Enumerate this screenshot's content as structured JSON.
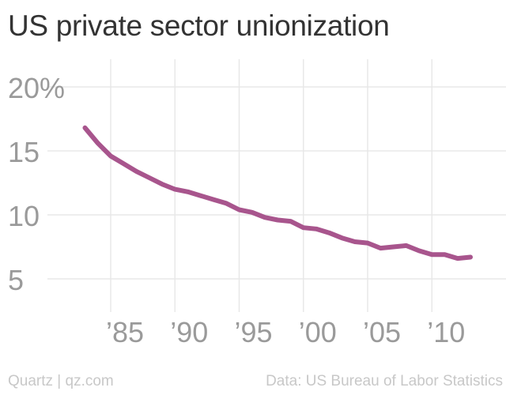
{
  "title": "US private sector unionization",
  "footer": {
    "source_left": "Quartz | qz.com",
    "source_right": "Data: US Bureau of Labor Statistics"
  },
  "colors": {
    "line": "#a8558d",
    "grid": "#e8e8e8",
    "tick_text": "#9a9a9a",
    "title": "#333333",
    "footer": "#c8c8c8"
  },
  "chart_data": {
    "type": "line",
    "title": "US private sector unionization",
    "xlabel": "",
    "ylabel": "",
    "xlim": [
      1983,
      2013
    ],
    "ylim": [
      5,
      20
    ],
    "grid": true,
    "x": [
      1983,
      1984,
      1985,
      1986,
      1987,
      1988,
      1989,
      1990,
      1991,
      1992,
      1993,
      1994,
      1995,
      1996,
      1997,
      1998,
      1999,
      2000,
      2001,
      2002,
      2003,
      2004,
      2005,
      2006,
      2007,
      2008,
      2009,
      2010,
      2011,
      2012,
      2013
    ],
    "series": [
      {
        "values": [
          16.8,
          15.6,
          14.6,
          14.0,
          13.4,
          12.9,
          12.4,
          12.0,
          11.8,
          11.5,
          11.2,
          10.9,
          10.4,
          10.2,
          9.8,
          9.6,
          9.5,
          9.0,
          8.9,
          8.6,
          8.2,
          7.9,
          7.8,
          7.4,
          7.5,
          7.6,
          7.2,
          6.9,
          6.9,
          6.6,
          6.7
        ]
      }
    ],
    "x_ticks": [
      {
        "value": 1985,
        "label": "’85"
      },
      {
        "value": 1990,
        "label": "’90"
      },
      {
        "value": 1995,
        "label": "’95"
      },
      {
        "value": 2000,
        "label": "’00"
      },
      {
        "value": 2005,
        "label": "’05"
      },
      {
        "value": 2010,
        "label": "’10"
      }
    ],
    "y_ticks": [
      {
        "value": 20,
        "label": "20%"
      },
      {
        "value": 15,
        "label": "15"
      },
      {
        "value": 10,
        "label": "10"
      },
      {
        "value": 5,
        "label": "5"
      }
    ]
  }
}
